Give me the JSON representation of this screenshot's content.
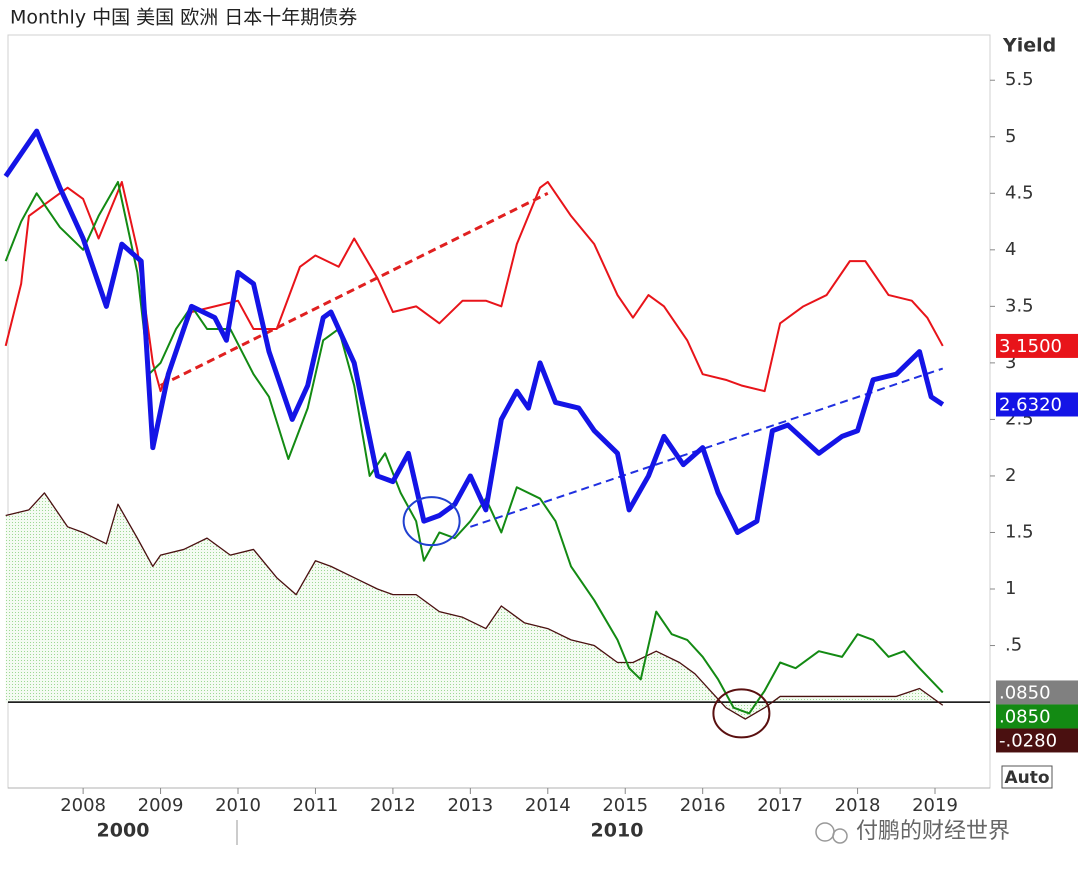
{
  "chart_data": {
    "type": "line",
    "title": "Monthly 中国 美国 欧洲 日本十年期债券",
    "y_label": "Yield",
    "button": "Auto",
    "watermark": "付鹏的财经世界",
    "x_group_labels": [
      "2000",
      "2010"
    ],
    "xlim": [
      2007.03,
      2019.71
    ],
    "xticks": [
      2008,
      2009,
      2010,
      2011,
      2012,
      2013,
      2014,
      2015,
      2016,
      2017,
      2018,
      2019
    ],
    "ylim": [
      -0.76,
      5.9
    ],
    "yticks": [
      {
        "value": 0.5,
        "label": ".5"
      },
      1,
      1.5,
      2,
      2.5,
      3,
      3.5,
      4,
      4.5,
      5,
      5.5
    ],
    "hline": 0,
    "marker_label": {
      "value": 0.085,
      "label": ".0850",
      "color": "#808080"
    },
    "series": [
      {
        "color": "#e8141a",
        "width": 2,
        "x": [
          2007.0,
          2007.2,
          2007.3,
          2007.6,
          2007.8,
          2008.0,
          2008.2,
          2008.5,
          2008.7,
          2008.9,
          2009.0,
          2009.2,
          2009.4,
          2009.7,
          2010.0,
          2010.2,
          2010.5,
          2010.8,
          2011.0,
          2011.3,
          2011.5,
          2011.8,
          2012.0,
          2012.3,
          2012.6,
          2012.9,
          2013.2,
          2013.4,
          2013.6,
          2013.9,
          2014.0,
          2014.3,
          2014.6,
          2014.9,
          2015.1,
          2015.3,
          2015.5,
          2015.8,
          2016.0,
          2016.3,
          2016.5,
          2016.8,
          2017.0,
          2017.3,
          2017.6,
          2017.9,
          2018.1,
          2018.4,
          2018.7,
          2018.9,
          2019.1
        ],
        "values": [
          3.15,
          3.7,
          4.3,
          4.45,
          4.55,
          4.45,
          4.1,
          4.6,
          4.0,
          3.0,
          2.75,
          3.1,
          3.45,
          3.5,
          3.55,
          3.3,
          3.3,
          3.85,
          3.95,
          3.85,
          4.1,
          3.75,
          3.45,
          3.5,
          3.35,
          3.55,
          3.55,
          3.5,
          4.05,
          4.55,
          4.6,
          4.3,
          4.05,
          3.6,
          3.4,
          3.6,
          3.5,
          3.2,
          2.9,
          2.85,
          2.8,
          2.75,
          3.35,
          3.5,
          3.6,
          3.9,
          3.9,
          3.6,
          3.55,
          3.4,
          3.15
        ],
        "last_label": "3.1500"
      },
      {
        "color": "#1414e6",
        "width": 5,
        "x": [
          2007.0,
          2007.4,
          2007.7,
          2008.0,
          2008.3,
          2008.5,
          2008.75,
          2008.9,
          2009.1,
          2009.4,
          2009.7,
          2009.85,
          2010.0,
          2010.2,
          2010.4,
          2010.7,
          2010.9,
          2011.1,
          2011.2,
          2011.5,
          2011.8,
          2012.0,
          2012.2,
          2012.4,
          2012.6,
          2012.8,
          2013.0,
          2013.2,
          2013.4,
          2013.6,
          2013.75,
          2013.9,
          2014.1,
          2014.4,
          2014.6,
          2014.9,
          2015.05,
          2015.3,
          2015.5,
          2015.75,
          2016.0,
          2016.2,
          2016.45,
          2016.7,
          2016.9,
          2017.1,
          2017.5,
          2017.8,
          2018.0,
          2018.2,
          2018.5,
          2018.8,
          2018.95,
          2019.1
        ],
        "values": [
          4.65,
          5.05,
          4.55,
          4.1,
          3.5,
          4.05,
          3.9,
          2.25,
          2.9,
          3.5,
          3.4,
          3.2,
          3.8,
          3.7,
          3.1,
          2.5,
          2.8,
          3.4,
          3.45,
          3.0,
          2.0,
          1.95,
          2.2,
          1.6,
          1.65,
          1.75,
          2.0,
          1.7,
          2.5,
          2.75,
          2.6,
          3.0,
          2.65,
          2.6,
          2.4,
          2.2,
          1.7,
          2.0,
          2.35,
          2.1,
          2.25,
          1.85,
          1.5,
          1.6,
          2.4,
          2.45,
          2.2,
          2.35,
          2.4,
          2.85,
          2.9,
          3.1,
          2.7,
          2.632
        ],
        "last_label": "2.6320"
      },
      {
        "color": "#138a13",
        "width": 2,
        "x": [
          2007.0,
          2007.2,
          2007.4,
          2007.7,
          2008.0,
          2008.2,
          2008.45,
          2008.7,
          2008.85,
          2009.0,
          2009.2,
          2009.4,
          2009.6,
          2009.9,
          2010.2,
          2010.4,
          2010.65,
          2010.9,
          2011.1,
          2011.3,
          2011.5,
          2011.7,
          2011.9,
          2012.1,
          2012.3,
          2012.4,
          2012.6,
          2012.8,
          2013.0,
          2013.2,
          2013.4,
          2013.6,
          2013.9,
          2014.1,
          2014.3,
          2014.6,
          2014.9,
          2015.05,
          2015.2,
          2015.4,
          2015.6,
          2015.8,
          2016.0,
          2016.2,
          2016.4,
          2016.6,
          2016.8,
          2017.0,
          2017.2,
          2017.5,
          2017.8,
          2018.0,
          2018.2,
          2018.4,
          2018.6,
          2018.8,
          2019.1
        ],
        "values": [
          3.9,
          4.25,
          4.5,
          4.2,
          4.0,
          4.3,
          4.6,
          3.8,
          2.9,
          3.0,
          3.3,
          3.5,
          3.3,
          3.3,
          2.9,
          2.7,
          2.15,
          2.6,
          3.2,
          3.3,
          2.8,
          2.0,
          2.2,
          1.85,
          1.6,
          1.25,
          1.5,
          1.45,
          1.6,
          1.8,
          1.5,
          1.9,
          1.8,
          1.6,
          1.2,
          0.9,
          0.55,
          0.3,
          0.2,
          0.8,
          0.6,
          0.55,
          0.4,
          0.2,
          -0.05,
          -0.1,
          0.1,
          0.35,
          0.3,
          0.45,
          0.4,
          0.6,
          0.55,
          0.4,
          0.45,
          0.3,
          0.085
        ],
        "last_label": ".0850"
      },
      {
        "color": "#4a1010",
        "width": 1.3,
        "area": true,
        "area_color": "#a8e0a0",
        "x": [
          2007.0,
          2007.3,
          2007.5,
          2007.8,
          2008.0,
          2008.3,
          2008.45,
          2008.7,
          2008.9,
          2009.0,
          2009.3,
          2009.6,
          2009.9,
          2010.2,
          2010.5,
          2010.75,
          2011.0,
          2011.2,
          2011.5,
          2011.8,
          2012.0,
          2012.3,
          2012.6,
          2012.9,
          2013.2,
          2013.4,
          2013.7,
          2014.0,
          2014.3,
          2014.6,
          2014.9,
          2015.1,
          2015.4,
          2015.7,
          2015.9,
          2016.1,
          2016.3,
          2016.55,
          2016.8,
          2017.0,
          2017.3,
          2017.6,
          2017.9,
          2018.2,
          2018.5,
          2018.8,
          2019.1
        ],
        "values": [
          1.65,
          1.7,
          1.85,
          1.55,
          1.5,
          1.4,
          1.75,
          1.45,
          1.2,
          1.3,
          1.35,
          1.45,
          1.3,
          1.35,
          1.1,
          0.95,
          1.25,
          1.2,
          1.1,
          1.0,
          0.95,
          0.95,
          0.8,
          0.75,
          0.65,
          0.85,
          0.7,
          0.65,
          0.55,
          0.5,
          0.35,
          0.35,
          0.45,
          0.35,
          0.25,
          0.1,
          -0.05,
          -0.15,
          -0.05,
          0.05,
          0.05,
          0.05,
          0.05,
          0.05,
          0.05,
          0.12,
          -0.028
        ],
        "last_label": "-.0280"
      }
    ],
    "trendlines": [
      {
        "x": [
          2009.0,
          2014.0
        ],
        "values": [
          2.8,
          4.5
        ],
        "color": "#e02020",
        "width": 3
      },
      {
        "x": [
          2013.0,
          2019.1
        ],
        "values": [
          1.55,
          2.95
        ],
        "color": "#2030e0",
        "width": 2
      }
    ],
    "circles": [
      {
        "x": 2012.5,
        "value": 1.6,
        "color": "#2040d0"
      },
      {
        "x": 2016.5,
        "value": -0.1,
        "color": "#5a1010"
      }
    ]
  }
}
